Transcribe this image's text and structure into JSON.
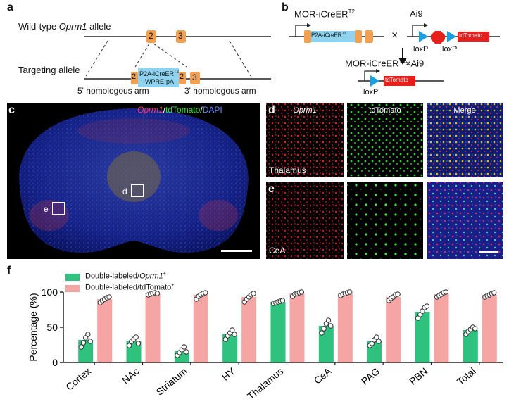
{
  "panel_a": {
    "letter": "a",
    "wildtype_prefix": "Wild-type ",
    "wildtype_gene": "Oprm1",
    "wildtype_suffix": " allele",
    "targeting_label": "Targeting allele",
    "exon2": "2",
    "exon3": "3",
    "cassette_line1": "P2A-iCreER",
    "cassette_sup": "T2",
    "cassette_line2": "-WPRE-pA",
    "arm5": "5' homologous arm",
    "arm3": "3' homologous arm"
  },
  "panel_b": {
    "letter": "b",
    "mor_label": "MOR-iCreER",
    "mor_sup": "T2",
    "ai9_label": "Ai9",
    "cassette": "P2A-iCreER",
    "cassette_sup": "T2",
    "cross": "×",
    "loxp": "loxP",
    "tdtomato": "tdTomato",
    "result_label": "MOR-iCreER",
    "result_sup": "T2",
    "result_suffix": "×Ai9"
  },
  "panel_c": {
    "letter": "c",
    "legend_oprm1": "Oprm1",
    "legend_sep1": "/",
    "legend_tdtomato": "tdTomato",
    "legend_sep2": "/",
    "legend_dapi": "DAPI",
    "box_d": "d",
    "box_e": "e"
  },
  "panel_de": {
    "letter_d": "d",
    "letter_e": "e",
    "col_oprm1": "Oprm1",
    "col_tdtomato": "tdTomato",
    "col_merge": "Merge",
    "row_d_label": "Thalamus",
    "row_e_label": "CeA"
  },
  "panel_f": {
    "letter": "f"
  },
  "colors": {
    "green_bar": "#2ec27e",
    "pink_bar": "#f6a5a5",
    "exon": "#f0a050",
    "cassette": "#8fd3f0",
    "tdtomato_box": "#e8201c",
    "loxp": "#1aa0e0"
  },
  "chart_data": {
    "type": "bar",
    "ylabel": "Percentage (%)",
    "ylim": [
      0,
      100
    ],
    "yticks": [
      0,
      50,
      100
    ],
    "categories": [
      "Cortex",
      "NAc",
      "Striatum",
      "HY",
      "Thalamus",
      "CeA",
      "PAG",
      "PBN",
      "Total"
    ],
    "series": [
      {
        "name": "Double-labeled/Oprm1+",
        "legend_main": "Double-labeled/",
        "legend_italic": "Oprm1",
        "legend_sup": "+",
        "color": "#2ec27e",
        "values": [
          32,
          30,
          17,
          40,
          86,
          52,
          30,
          72,
          46
        ],
        "points": [
          [
            22,
            28,
            35,
            40,
            30
          ],
          [
            24,
            30,
            33,
            36,
            27
          ],
          [
            10,
            14,
            18,
            22,
            15
          ],
          [
            33,
            38,
            42,
            46,
            40
          ],
          [
            84,
            85,
            86,
            87,
            88
          ],
          [
            42,
            48,
            55,
            60,
            52
          ],
          [
            24,
            27,
            32,
            36,
            30
          ],
          [
            63,
            68,
            73,
            78,
            80
          ],
          [
            40,
            44,
            47,
            50,
            48
          ]
        ]
      },
      {
        "name": "Double-labeled/tdTomato+",
        "legend_main": "Double-labeled/tdTomato",
        "legend_italic": "",
        "legend_sup": "+",
        "color": "#f6a5a5",
        "values": [
          90,
          98,
          96,
          93,
          98,
          98,
          93,
          97,
          96
        ],
        "points": [
          [
            85,
            88,
            90,
            92,
            93
          ],
          [
            96,
            97,
            98,
            99,
            98
          ],
          [
            90,
            94,
            96,
            98,
            99
          ],
          [
            86,
            90,
            93,
            96,
            98
          ],
          [
            94,
            97,
            98,
            99,
            100
          ],
          [
            95,
            97,
            98,
            99,
            100
          ],
          [
            88,
            91,
            93,
            96,
            97
          ],
          [
            93,
            95,
            97,
            99,
            100
          ],
          [
            93,
            95,
            96,
            98,
            99
          ]
        ]
      }
    ],
    "grid": false,
    "legend_position": "top-left"
  }
}
